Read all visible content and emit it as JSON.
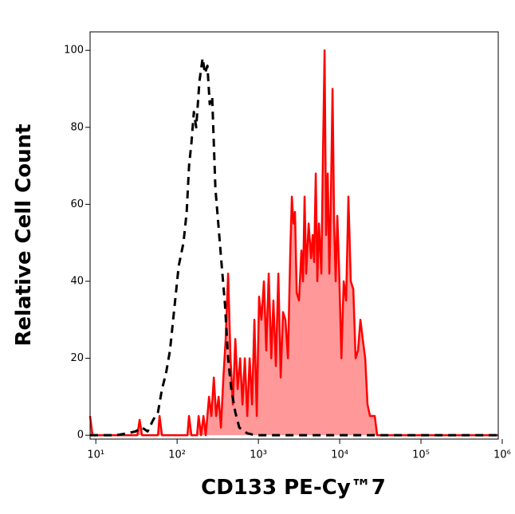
{
  "chart_data": {
    "type": "histogram-overlay",
    "x_label": "CD133 PE-Cy™7",
    "y_label": "Relative Cell Count",
    "x_scale": "log",
    "xlim": [
      8.5,
      893000
    ],
    "ylim": [
      -1,
      104.8
    ],
    "xticks": [
      {
        "value": 10,
        "label": "10¹"
      },
      {
        "value": 100,
        "label": "10²"
      },
      {
        "value": 1000,
        "label": "10³"
      },
      {
        "value": 10000,
        "label": "10⁴"
      },
      {
        "value": 100000,
        "label": "10⁵"
      },
      {
        "value": 1000000,
        "label": "10⁶"
      }
    ],
    "yticks": [
      0,
      20,
      40,
      60,
      80,
      100
    ],
    "series": [
      {
        "color": "#000000",
        "line_style": "dashed",
        "filled": false,
        "x": [
          8.5,
          17.6,
          24.6,
          30.9,
          37.0,
          43.4,
          50.8,
          58.2,
          65.2,
          72.9,
          81.7,
          91.4,
          104.7,
          119.7,
          131.2,
          140.3,
          150.1,
          160.8,
          171.8,
          188.3,
          206,
          220,
          236,
          252,
          270,
          296,
          324,
          354,
          388,
          424,
          464,
          520,
          582,
          730,
          915,
          893000
        ],
        "values": [
          0,
          0,
          0.5,
          1,
          2,
          1,
          4,
          6,
          12,
          16,
          22,
          32,
          44,
          50,
          58,
          70,
          76,
          84,
          80,
          92,
          98,
          94,
          96,
          86,
          88,
          64,
          54,
          44,
          34,
          20,
          12,
          6,
          2,
          0.5,
          0,
          0
        ]
      },
      {
        "color": "#ff0000",
        "fill_color": "#ff9999",
        "line_style": "solid",
        "filled": true,
        "x": [
          8.5,
          9.1,
          32.4,
          34.6,
          37.0,
          58.2,
          60.8,
          65.2,
          134,
          140,
          150,
          176,
          184,
          197,
          211,
          225,
          247,
          264,
          283,
          302,
          324,
          346,
          371,
          396,
          424,
          454,
          485,
          520,
          556,
          596,
          637,
          681,
          730,
          780,
          836,
          893,
          955,
          1020,
          1090,
          1170,
          1250,
          1340,
          1440,
          1530,
          1640,
          1760,
          1880,
          2010,
          2150,
          2310,
          2470,
          2580,
          2700,
          2820,
          2960,
          3160,
          3380,
          3540,
          3700,
          3870,
          4150,
          4440,
          4650,
          4850,
          5080,
          5310,
          5560,
          5950,
          6220,
          6520,
          6810,
          7130,
          7460,
          7800,
          8170,
          8540,
          8930,
          9350,
          9780,
          10500,
          11200,
          12000,
          12800,
          13700,
          14700,
          15700,
          16800,
          18000,
          19200,
          20600,
          22000,
          23600,
          27000,
          28900,
          893000
        ],
        "values": [
          5,
          0,
          0,
          4,
          0,
          0,
          5,
          0,
          0,
          5,
          0,
          0,
          5,
          0,
          5,
          0,
          10,
          5,
          15,
          5,
          10,
          2,
          15,
          25,
          42,
          20,
          8,
          25,
          12,
          20,
          8,
          20,
          5,
          20,
          8,
          30,
          5,
          36,
          30,
          40,
          22,
          42,
          20,
          35,
          18,
          42,
          15,
          32,
          30,
          20,
          48,
          62,
          55,
          58,
          37,
          35,
          48,
          40,
          62,
          42,
          55,
          46,
          52,
          45,
          68,
          40,
          55,
          42,
          72,
          100,
          52,
          68,
          42,
          62,
          90,
          55,
          40,
          57,
          45,
          20,
          40,
          35,
          62,
          40,
          38,
          20,
          22,
          30,
          25,
          20,
          8,
          5,
          5,
          0,
          0
        ]
      }
    ]
  }
}
